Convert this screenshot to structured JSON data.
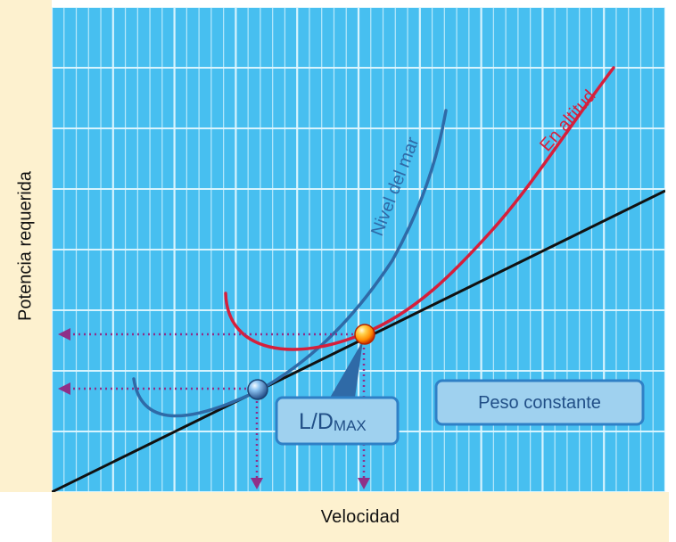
{
  "labels": {
    "y_axis": "Potencia requerida",
    "x_axis": "Velocidad",
    "sea_level_curve": "Nivel del mar",
    "altitude_curve": "En altitud",
    "ld_box_main": "L/D",
    "ld_box_sub": "MAX",
    "constant_weight": "Peso constante"
  },
  "colors": {
    "plot_background": "#47bff0",
    "grid_line": "#dff7ff",
    "panel_background": "#fdf1cf",
    "sea_level_curve": "#2f6aa7",
    "altitude_curve": "#d61f3b",
    "tangent_line": "#111111",
    "projection_arrows": "#8f2f88",
    "label_box_fill": "#9fd1ef",
    "label_box_stroke": "#2f80c6",
    "label_text": "#214f87"
  },
  "icons": {
    "sea_level_point": "blue-sphere-marker",
    "altitude_point": "orange-sphere-marker",
    "projection": "arrowhead"
  }
}
